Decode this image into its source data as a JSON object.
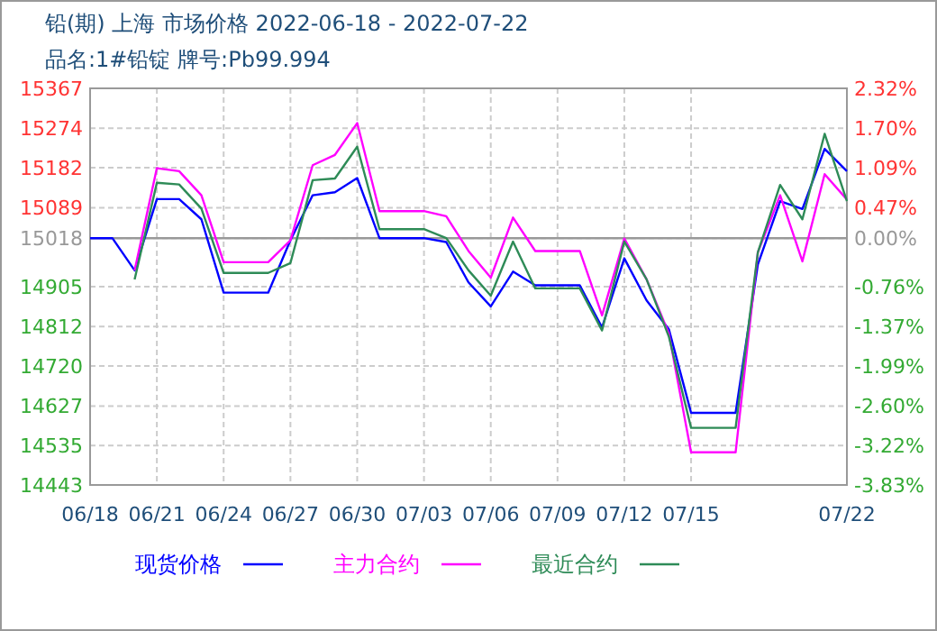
{
  "chart_data": {
    "type": "line",
    "title": "铅(期) 上海 市场价格 2022-06-18 - 2022-07-22",
    "subtitle": "品名:1#铅锭 牌号:Pb99.994",
    "x": [
      "2022-06-18",
      "2022-06-19",
      "2022-06-20",
      "2022-06-21",
      "2022-06-22",
      "2022-06-23",
      "2022-06-24",
      "2022-06-25",
      "2022-06-26",
      "2022-06-27",
      "2022-06-28",
      "2022-06-29",
      "2022-06-30",
      "2022-07-01",
      "2022-07-02",
      "2022-07-03",
      "2022-07-04",
      "2022-07-05",
      "2022-07-06",
      "2022-07-07",
      "2022-07-08",
      "2022-07-09",
      "2022-07-10",
      "2022-07-11",
      "2022-07-12",
      "2022-07-13",
      "2022-07-14",
      "2022-07-15",
      "2022-07-16",
      "2022-07-17",
      "2022-07-18",
      "2022-07-19",
      "2022-07-20",
      "2022-07-21",
      "2022-07-22"
    ],
    "series": [
      {
        "name": "现货价格",
        "color": "#0000ff",
        "values": [
          15018,
          15018,
          14943,
          15109,
          15109,
          15062,
          14891,
          14891,
          14891,
          15013,
          15118,
          15125,
          15158,
          15018,
          15018,
          15018,
          15009,
          14915,
          14859,
          14940,
          14908,
          14908,
          14908,
          14810,
          14971,
          14873,
          14806,
          14611,
          14611,
          14611,
          14957,
          15104,
          15086,
          15226,
          15174
        ]
      },
      {
        "name": "主力合约",
        "color": "#ff00ff",
        "values": [
          null,
          null,
          14943,
          15181,
          15174,
          15118,
          14962,
          14962,
          14962,
          15013,
          15188,
          15212,
          15286,
          15081,
          15081,
          15081,
          15069,
          14988,
          14926,
          15066,
          14988,
          14988,
          14988,
          14838,
          15017,
          14922,
          14796,
          14519,
          14519,
          14519,
          14985,
          15118,
          14964,
          15167,
          15108
        ]
      },
      {
        "name": "最近合约",
        "color": "#2e8b57",
        "values": [
          null,
          null,
          14922,
          15147,
          15143,
          15087,
          14937,
          14937,
          14937,
          14960,
          15153,
          15157,
          15231,
          15039,
          15039,
          15039,
          15018,
          14943,
          14884,
          15010,
          14901,
          14901,
          14901,
          14803,
          15010,
          14922,
          14789,
          14576,
          14576,
          14576,
          14985,
          15142,
          15062,
          15261,
          15104
        ]
      }
    ],
    "xlim": [
      "2022-06-18",
      "2022-07-22"
    ],
    "xticks": [
      {
        "value": "2022-06-18",
        "label": "06/18"
      },
      {
        "value": "2022-06-21",
        "label": "06/21"
      },
      {
        "value": "2022-06-24",
        "label": "06/24"
      },
      {
        "value": "2022-06-27",
        "label": "06/27"
      },
      {
        "value": "2022-06-30",
        "label": "06/30"
      },
      {
        "value": "2022-07-03",
        "label": "07/03"
      },
      {
        "value": "2022-07-06",
        "label": "07/06"
      },
      {
        "value": "2022-07-09",
        "label": "07/09"
      },
      {
        "value": "2022-07-12",
        "label": "07/12"
      },
      {
        "value": "2022-07-15",
        "label": "07/15"
      },
      {
        "value": "2022-07-22",
        "label": "07/22"
      }
    ],
    "ylim": [
      14443,
      15367
    ],
    "yticks": [
      14443,
      14535,
      14627,
      14720,
      14812,
      14905,
      15018,
      15089,
      15182,
      15274,
      15367
    ],
    "y2lim": [
      -3.83,
      2.32
    ],
    "y2ticks": [
      {
        "value": -3.83,
        "label": "-3.83%"
      },
      {
        "value": -3.22,
        "label": "-3.22%"
      },
      {
        "value": -2.6,
        "label": "-2.60%"
      },
      {
        "value": -1.99,
        "label": "-1.99%"
      },
      {
        "value": -1.37,
        "label": "-1.37%"
      },
      {
        "value": -0.76,
        "label": "-0.76%"
      },
      {
        "value": 0,
        "label": "0.00%"
      },
      {
        "value": 0.47,
        "label": "0.47%"
      },
      {
        "value": 1.09,
        "label": "1.09%"
      },
      {
        "value": 1.7,
        "label": "1.70%"
      },
      {
        "value": 2.32,
        "label": "2.32%"
      }
    ],
    "ref_lines": [
      {
        "axis": "y",
        "value": 15018,
        "color": "#999999"
      }
    ],
    "grid": true,
    "legend": "bottom",
    "marker": "none",
    "line_style": "solid"
  }
}
